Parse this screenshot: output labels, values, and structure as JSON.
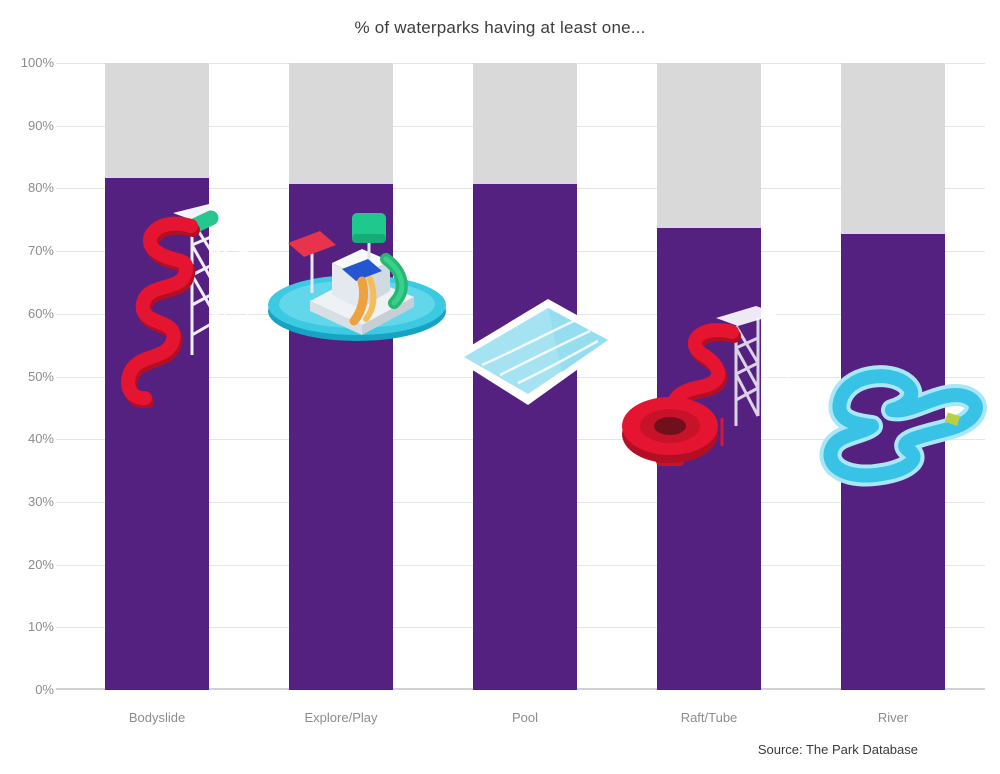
{
  "title": "% of waterparks having at least one...",
  "source": "Source: The Park Database",
  "chart_data": {
    "type": "bar",
    "title": "% of waterparks having at least one...",
    "categories": [
      "Bodyslide",
      "Explore/Play",
      "Pool",
      "Raft/Tube",
      "River"
    ],
    "values": [
      82,
      81,
      81,
      74,
      73
    ],
    "series": [
      {
        "name": "waterparks-with-feature-pct",
        "values": [
          82,
          81,
          81,
          74,
          73
        ],
        "color": "#542181"
      },
      {
        "name": "remainder-to-100-pct",
        "values": [
          18,
          19,
          19,
          26,
          27
        ],
        "color": "#d9d9d9"
      }
    ],
    "stacked": true,
    "xlabel": "",
    "ylabel": "",
    "ylim": [
      0,
      100
    ],
    "yticks": [
      "0%",
      "10%",
      "20%",
      "30%",
      "40%",
      "50%",
      "60%",
      "70%",
      "80%",
      "90%",
      "100%"
    ],
    "grid": "horizontal",
    "legend": "none",
    "bar_color": "#542181",
    "remainder_color": "#d9d9d9",
    "bar_top_edge_color": "#ded4e8",
    "gridline_color": "#e5e5e5",
    "axis_text_color": "#8c8c8c",
    "title_color": "#3d3d3d",
    "source_color": "#3a3a3a",
    "icons": [
      {
        "name": "bodyslide-icon",
        "description": "red spiral body slide with white tower",
        "colors": {
          "slide": "#e51430",
          "slide_shadow": "#b30f24",
          "tower": "#ffffff",
          "entry": "#25c78e"
        }
      },
      {
        "name": "explore-play-icon",
        "description": "play structure on round pool",
        "colors": {
          "pool": "#3cc9e2",
          "canopy": "#e8344a",
          "bucket": "#1fc98e",
          "panel": "#2356cf",
          "slide_green": "#28b772",
          "slide_orange": "#eda23f",
          "deck": "#eef2f5"
        }
      },
      {
        "name": "pool-icon",
        "description": "flat isometric pool",
        "colors": {
          "water": "#a6e3f2",
          "rim": "#ffffff"
        }
      },
      {
        "name": "raft-tube-icon",
        "description": "red raft tube slide with bowl and tower",
        "colors": {
          "tube": "#e51430",
          "bowl_shadow": "#b30f24",
          "hole": "#70101c",
          "tower": "#ffffff"
        }
      },
      {
        "name": "river-icon",
        "description": "winding lazy river loop",
        "colors": {
          "channel": "#38c2e6",
          "halo": "#a9e6f6",
          "raft": "#b8cf47"
        }
      }
    ]
  }
}
